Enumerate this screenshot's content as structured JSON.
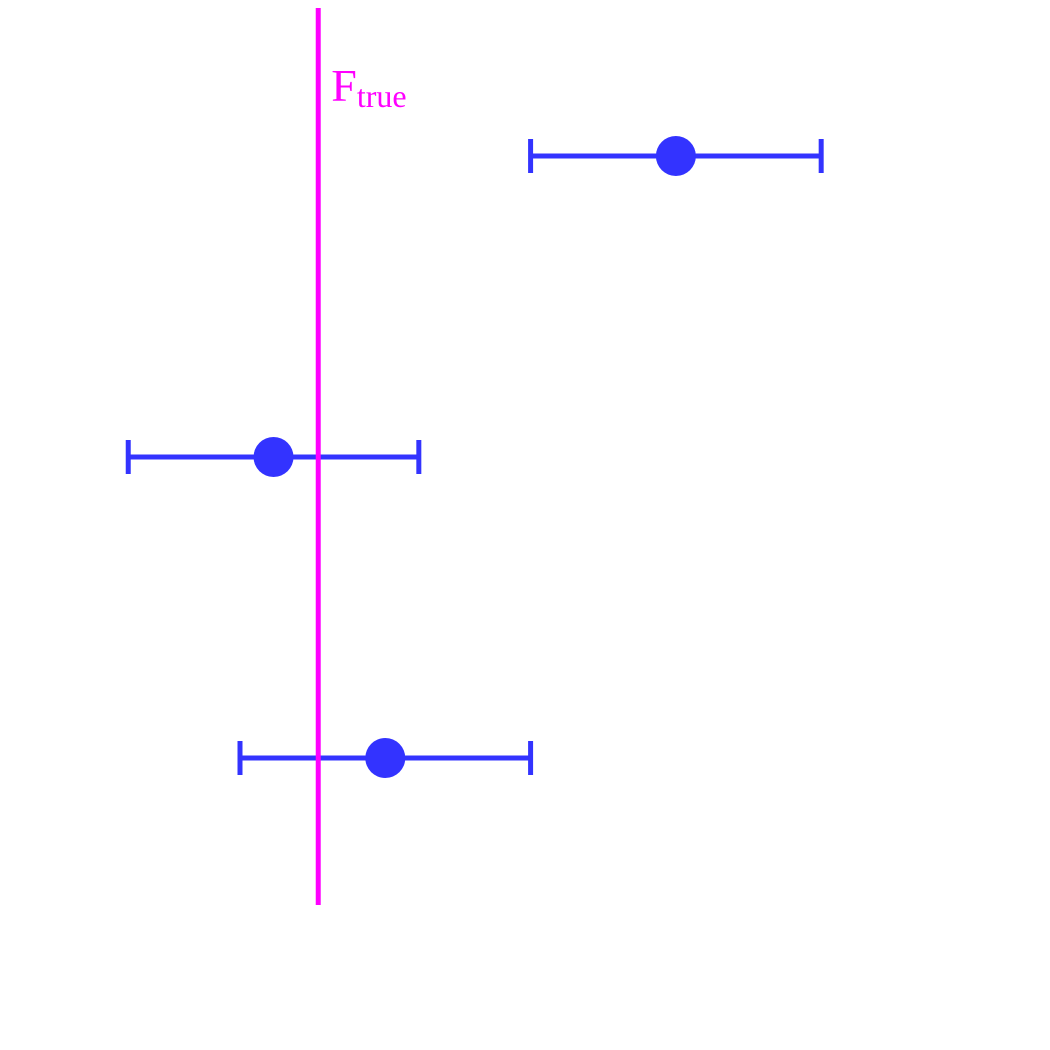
{
  "chart_data": {
    "type": "scatter",
    "subtype": "forest-plot-with-error-bars",
    "title": "",
    "xlabel": "",
    "ylabel": "",
    "xlim": [
      -2.4,
      6.1
    ],
    "axes_visible": false,
    "grid": false,
    "legend": "none",
    "reference_line": {
      "value": 0,
      "label_main": "F",
      "label_sub": "true",
      "color": "#ff00ff"
    },
    "points": [
      {
        "row": 1,
        "estimate": 3.2,
        "lower": 1.9,
        "upper": 4.5
      },
      {
        "row": 2,
        "estimate": -0.4,
        "lower": -1.7,
        "upper": 0.9
      },
      {
        "row": 3,
        "estimate": 0.6,
        "lower": -0.7,
        "upper": 1.9
      }
    ],
    "point_color": "#3333ff"
  }
}
